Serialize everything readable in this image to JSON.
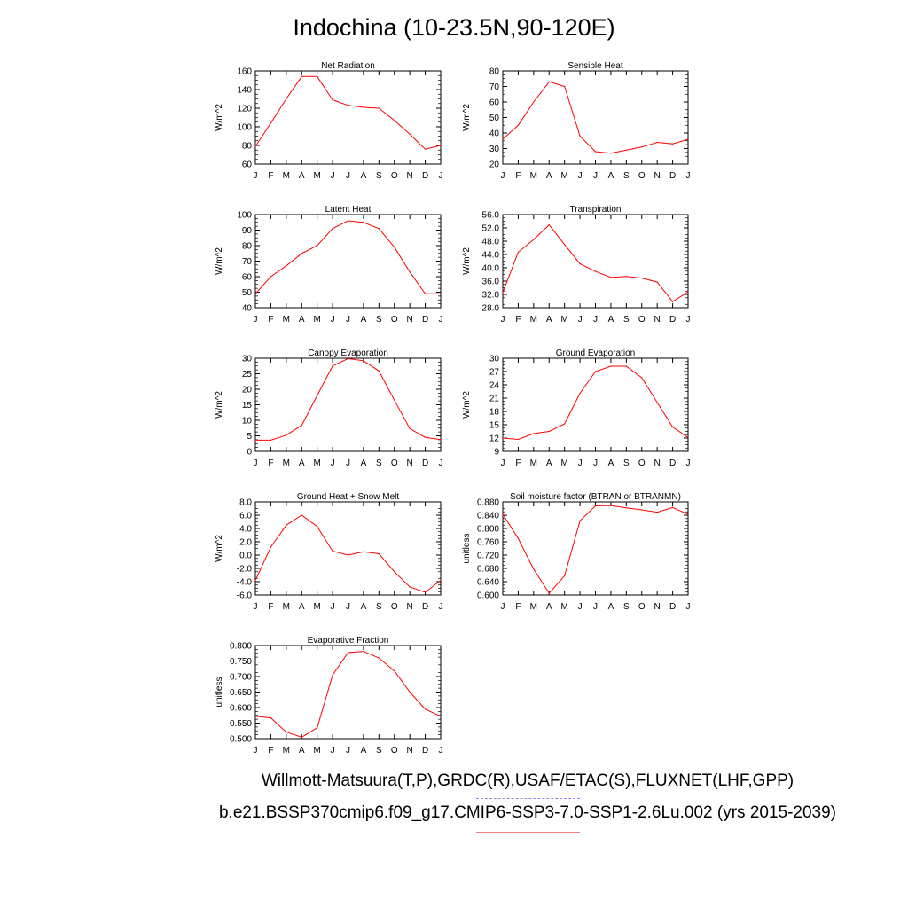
{
  "title": "Indochina (10-23.5N,90-120E)",
  "captions": {
    "line1": "Willmott-Matsuura(T,P),GRDC(R),USAF/ETAC(S),FLUXNET(LHF,GPP)",
    "line2": "b.e21.BSSP370cmip6.f09_g17.CMIP6-SSP3-7.0-SSP1-2.6Lu.002 (yrs 2015-2039)"
  },
  "colors": {
    "series": "#ff0000",
    "obs_legend": "#8888ee",
    "model_legend": "#f08080"
  },
  "chart_data": [
    {
      "type": "line",
      "title": "Net Radiation",
      "ylabel": "W/m^2",
      "categories": [
        "J",
        "F",
        "M",
        "A",
        "M",
        "J",
        "J",
        "A",
        "S",
        "O",
        "N",
        "D",
        "J"
      ],
      "ylim": [
        60,
        160
      ],
      "yticks": [
        "60",
        "80",
        "100",
        "120",
        "140",
        "160"
      ],
      "values": [
        79,
        104,
        130,
        154,
        154,
        129,
        123,
        121,
        120,
        107,
        92,
        76,
        80
      ]
    },
    {
      "type": "line",
      "title": "Sensible Heat",
      "ylabel": "W/m^2",
      "categories": [
        "J",
        "F",
        "M",
        "A",
        "M",
        "J",
        "J",
        "A",
        "S",
        "O",
        "N",
        "D",
        "J"
      ],
      "ylim": [
        20,
        80
      ],
      "yticks": [
        "20",
        "30",
        "40",
        "50",
        "60",
        "70",
        "80"
      ],
      "values": [
        36,
        45,
        60,
        73,
        70,
        38,
        28,
        27,
        29,
        31,
        34,
        33,
        36
      ]
    },
    {
      "type": "line",
      "title": "Latent Heat",
      "ylabel": "W/m^2",
      "categories": [
        "J",
        "F",
        "M",
        "A",
        "M",
        "J",
        "J",
        "A",
        "S",
        "O",
        "N",
        "D",
        "J"
      ],
      "ylim": [
        40,
        100
      ],
      "yticks": [
        "40",
        "50",
        "60",
        "70",
        "80",
        "90",
        "100"
      ],
      "values": [
        49,
        60,
        67,
        75,
        80,
        91,
        96,
        95,
        91,
        79,
        63,
        49,
        49
      ]
    },
    {
      "type": "line",
      "title": "Transpiration",
      "ylabel": "W/m^2",
      "categories": [
        "J",
        "F",
        "M",
        "A",
        "M",
        "J",
        "J",
        "A",
        "S",
        "O",
        "N",
        "D",
        "J"
      ],
      "ylim": [
        28,
        56
      ],
      "yticks": [
        "28.0",
        "32.0",
        "36.0",
        "40.0",
        "44.0",
        "48.0",
        "52.0",
        "56.0"
      ],
      "values": [
        32.5,
        44.7,
        48.5,
        52.9,
        47.0,
        41.2,
        38.9,
        37.1,
        37.4,
        36.9,
        35.7,
        29.8,
        32.8
      ]
    },
    {
      "type": "line",
      "title": "Canopy Evaporation",
      "ylabel": "W/m^2",
      "categories": [
        "J",
        "F",
        "M",
        "A",
        "M",
        "J",
        "J",
        "A",
        "S",
        "O",
        "N",
        "D",
        "J"
      ],
      "ylim": [
        0,
        30
      ],
      "yticks": [
        "0",
        "5",
        "10",
        "15",
        "20",
        "25",
        "30"
      ],
      "values": [
        3.6,
        3.6,
        5.2,
        8.4,
        18,
        27.5,
        29.9,
        29.2,
        25.9,
        16.5,
        7.3,
        4.5,
        3.8
      ]
    },
    {
      "type": "line",
      "title": "Ground Evaporation",
      "ylabel": "W/m^2",
      "categories": [
        "J",
        "F",
        "M",
        "A",
        "M",
        "J",
        "J",
        "A",
        "S",
        "O",
        "N",
        "D",
        "J"
      ],
      "ylim": [
        9,
        30
      ],
      "yticks": [
        "9",
        "12",
        "15",
        "18",
        "21",
        "24",
        "27",
        "30"
      ],
      "values": [
        12.0,
        11.7,
        13.0,
        13.5,
        15.2,
        22.1,
        27.0,
        28.2,
        28.2,
        25.6,
        20.0,
        14.5,
        12.1
      ]
    },
    {
      "type": "line",
      "title": "Ground Heat + Snow Melt",
      "ylabel": "W/m^2",
      "categories": [
        "J",
        "F",
        "M",
        "A",
        "M",
        "J",
        "J",
        "A",
        "S",
        "O",
        "N",
        "D",
        "J"
      ],
      "ylim": [
        -6,
        8
      ],
      "yticks": [
        "-6.0",
        "-4.0",
        "-2.0",
        "0.0",
        "2.0",
        "4.0",
        "6.0",
        "8.0"
      ],
      "values": [
        -3.8,
        1.2,
        4.5,
        6.0,
        4.3,
        0.6,
        0.0,
        0.5,
        0.2,
        -2.5,
        -4.8,
        -5.6,
        -3.8
      ]
    },
    {
      "type": "line",
      "title": "Soil moisture factor (BTRAN or BTRANMN)",
      "ylabel": "unitless",
      "categories": [
        "J",
        "F",
        "M",
        "A",
        "M",
        "J",
        "J",
        "A",
        "S",
        "O",
        "N",
        "D",
        "J"
      ],
      "ylim": [
        0.6,
        0.88
      ],
      "yticks": [
        "0.600",
        "0.640",
        "0.680",
        "0.720",
        "0.760",
        "0.800",
        "0.840",
        "0.880"
      ],
      "values": [
        0.843,
        0.77,
        0.678,
        0.605,
        0.658,
        0.823,
        0.868,
        0.869,
        0.862,
        0.856,
        0.849,
        0.863,
        0.843
      ]
    },
    {
      "type": "line",
      "title": "Evaporative Fraction",
      "ylabel": "unitless",
      "categories": [
        "J",
        "F",
        "M",
        "A",
        "M",
        "J",
        "J",
        "A",
        "S",
        "O",
        "N",
        "D",
        "J"
      ],
      "ylim": [
        0.5,
        0.8
      ],
      "yticks": [
        "0.500",
        "0.550",
        "0.600",
        "0.650",
        "0.700",
        "0.750",
        "0.800"
      ],
      "values": [
        0.572,
        0.567,
        0.521,
        0.505,
        0.535,
        0.705,
        0.777,
        0.781,
        0.76,
        0.718,
        0.65,
        0.595,
        0.572
      ]
    }
  ]
}
